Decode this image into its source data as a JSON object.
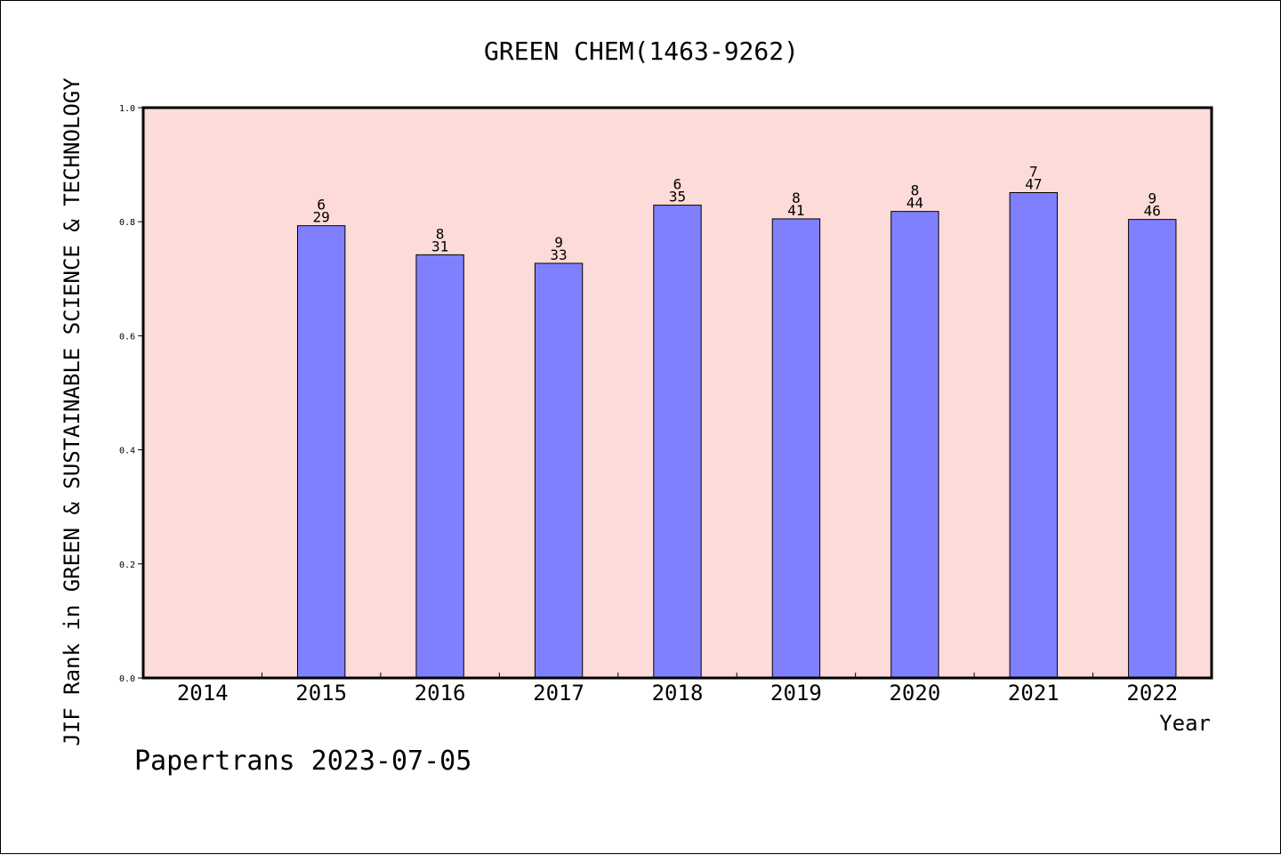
{
  "chart_data": {
    "type": "bar",
    "title": "GREEN CHEM(1463-9262)",
    "xlabel": "Year",
    "ylabel": "JIF Rank in GREEN & SUSTAINABLE SCIENCE & TECHNOLOGY",
    "ylim": [
      0,
      1.0
    ],
    "yticks": [
      "0.0",
      "0.2",
      "0.4",
      "0.6",
      "0.8",
      "1.0"
    ],
    "grid": false,
    "categories": [
      "2014",
      "2015",
      "2016",
      "2017",
      "2018",
      "2019",
      "2020",
      "2021",
      "2022"
    ],
    "values": [
      null,
      0.793,
      0.742,
      0.727,
      0.829,
      0.805,
      0.818,
      0.851,
      0.804
    ],
    "rank_labels": [
      "",
      "6",
      "8",
      "9",
      "6",
      "8",
      "8",
      "7",
      "9"
    ],
    "total_labels": [
      "",
      "29",
      "31",
      "33",
      "35",
      "41",
      "44",
      "47",
      "46"
    ],
    "colors": {
      "plot_bg": "#fddbd8",
      "bar_fill": "#8080ff",
      "bar_edge": "#000000"
    }
  },
  "footer": {
    "text": "Papertrans 2023-07-05"
  }
}
